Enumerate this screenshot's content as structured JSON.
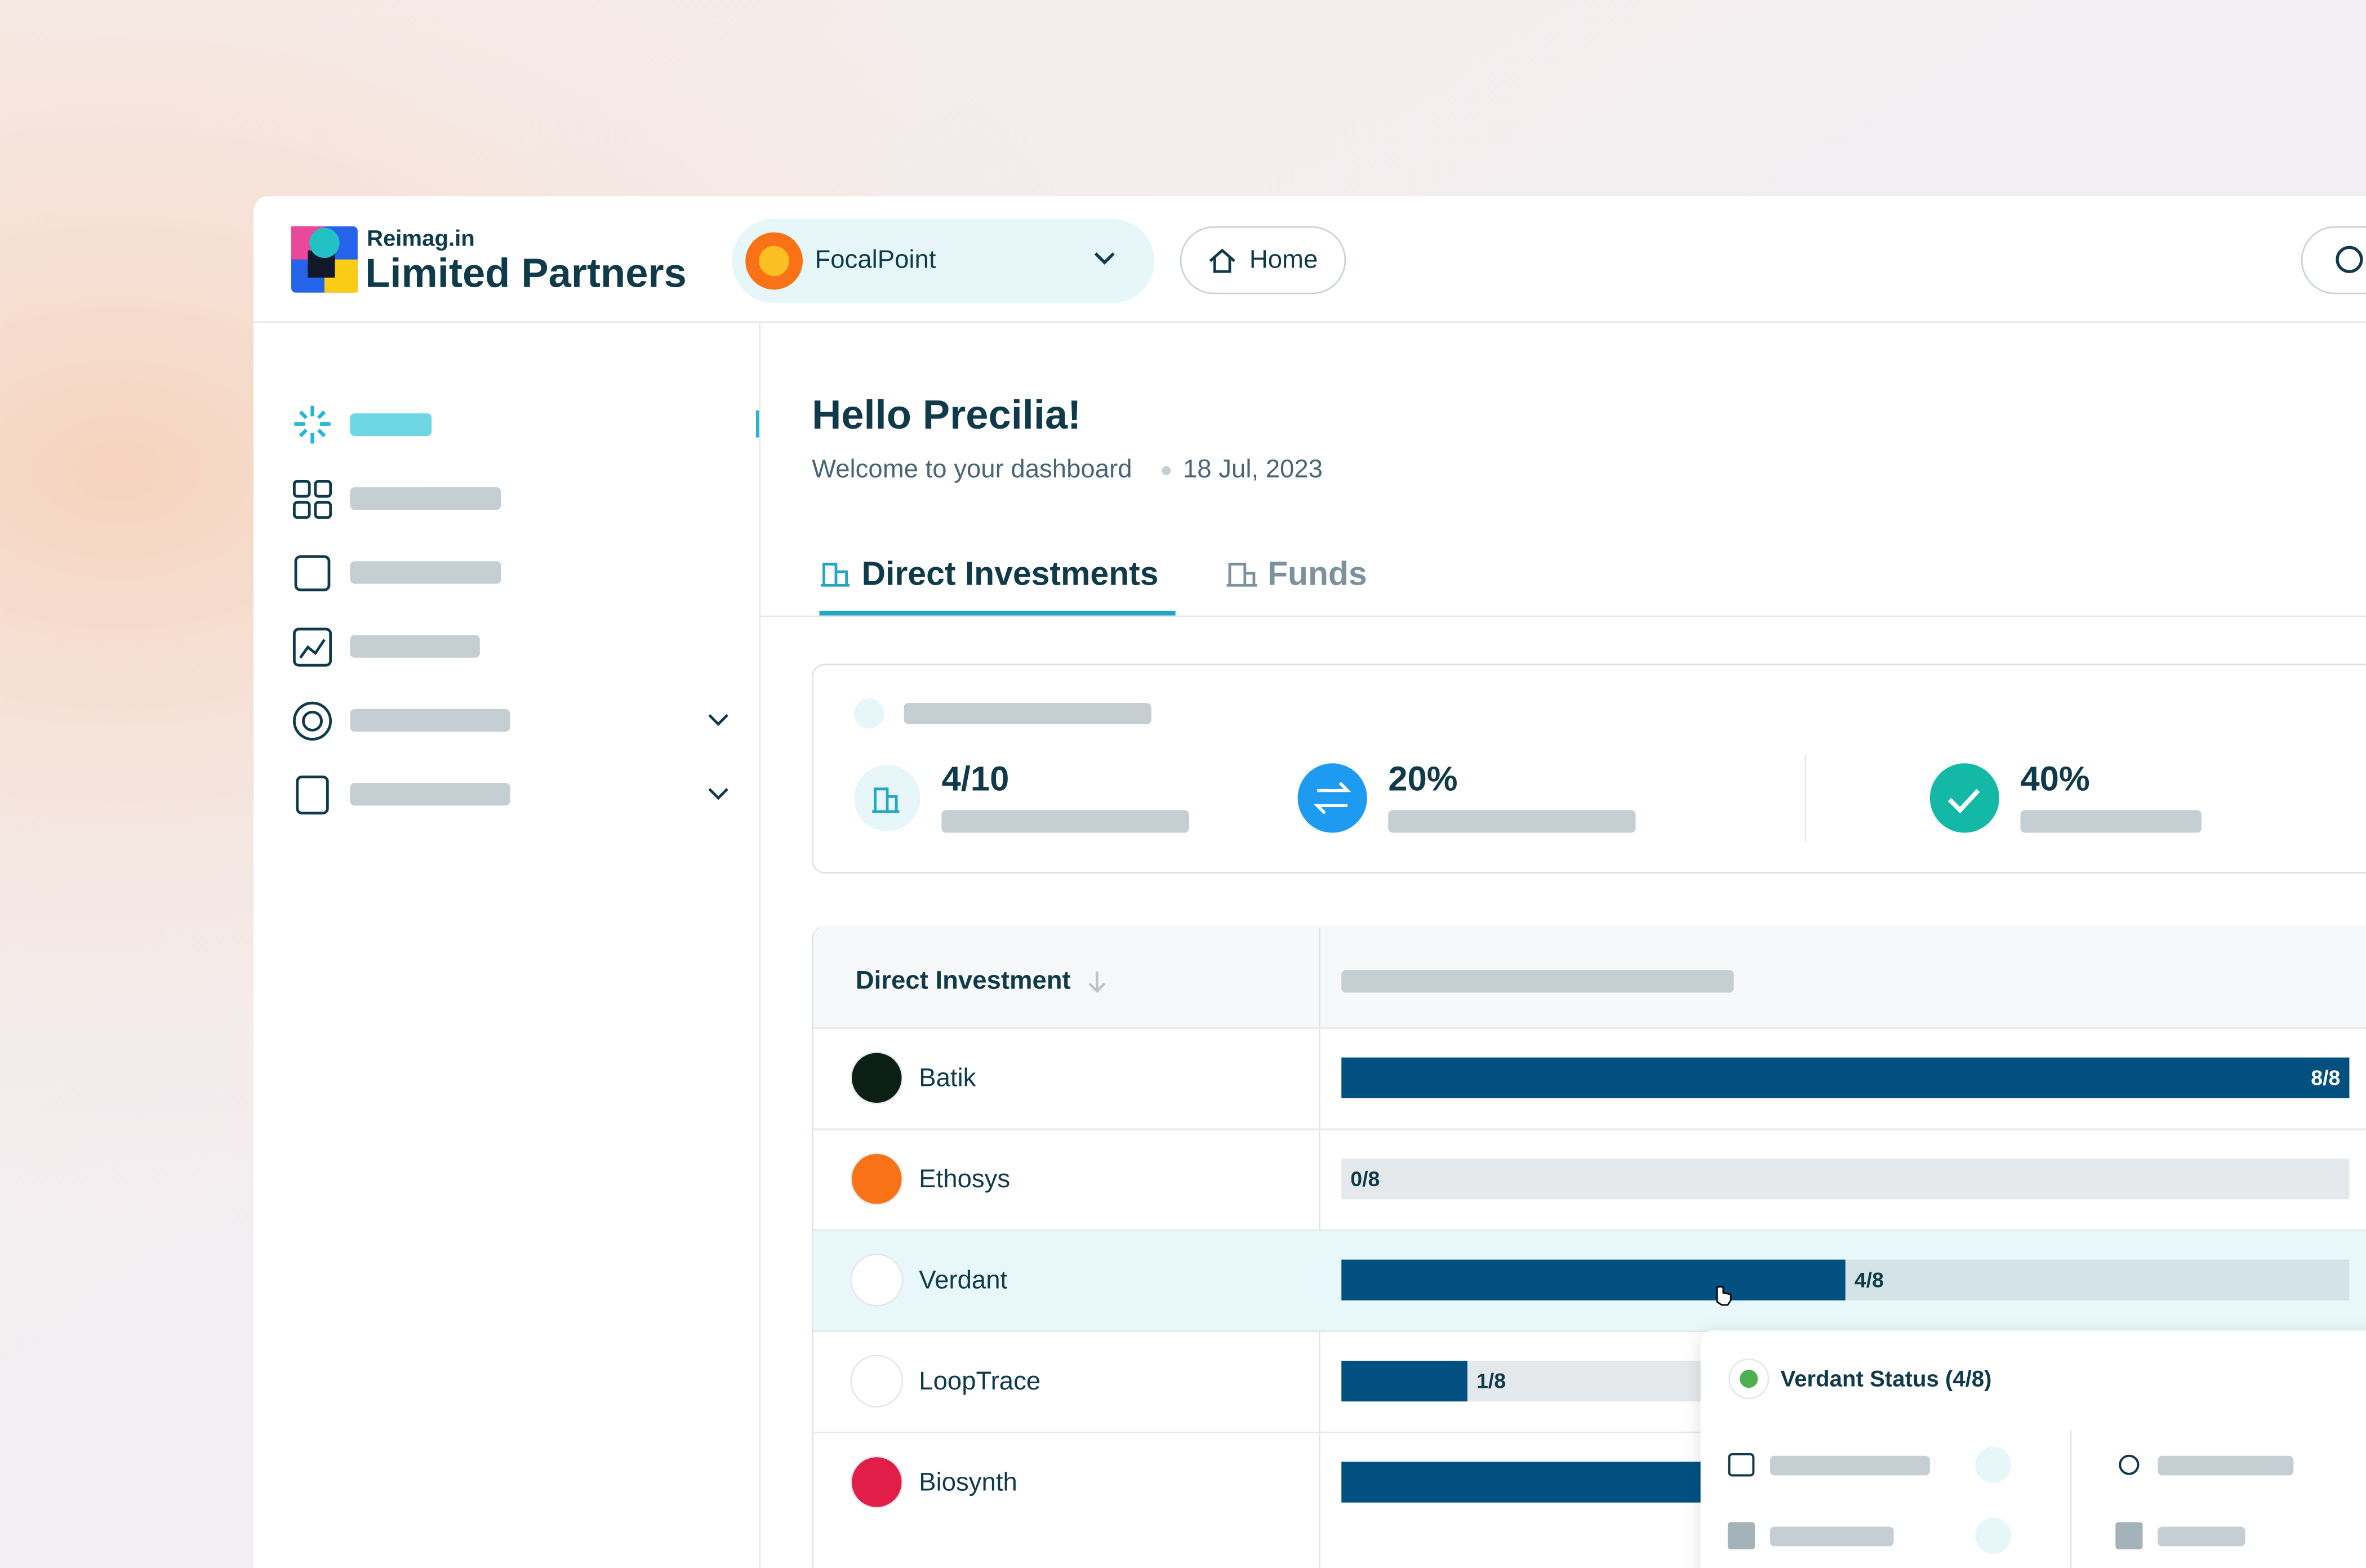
{
  "header": {
    "brand": "Reimag.in",
    "product": "Limited Partners",
    "organization": "FocalPoint",
    "home": "Home"
  },
  "greeting": {
    "title": "Hello Precilia!",
    "subtitle": "Welcome to your dashboard",
    "date": "18 Jul, 2023"
  },
  "tabs": [
    "Direct Investments",
    "Funds"
  ],
  "stats": [
    "4/10",
    "20%",
    "40%"
  ],
  "table": {
    "header": "Direct Investment",
    "rows": [
      {
        "name": "Batik",
        "done": 8,
        "total": 8,
        "label": "8/8"
      },
      {
        "name": "Ethosys",
        "done": 0,
        "total": 8,
        "label": "0/8"
      },
      {
        "name": "Verdant",
        "done": 4,
        "total": 8,
        "label": "4/8"
      },
      {
        "name": "LoopTrace",
        "done": 1,
        "total": 8,
        "label": "1/8"
      },
      {
        "name": "Biosynth",
        "done": 4,
        "total": 8
      }
    ]
  },
  "popup": {
    "title": "Verdant Status (4/8)"
  }
}
